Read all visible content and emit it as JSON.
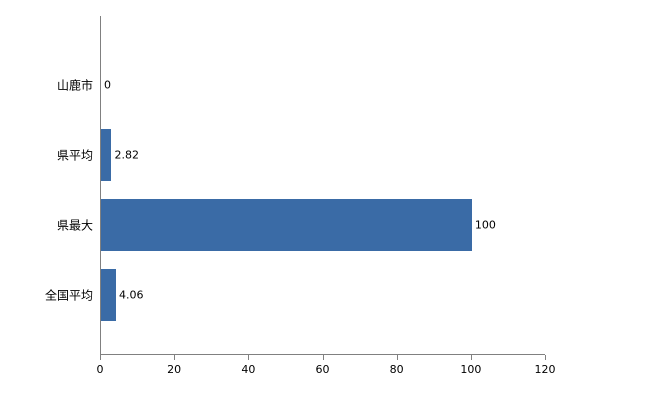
{
  "chart_data": {
    "type": "bar",
    "orientation": "horizontal",
    "title": "",
    "categories": [
      "山鹿市",
      "県平均",
      "県最大",
      "全国平均"
    ],
    "values": [
      0,
      2.82,
      100,
      4.06
    ],
    "value_labels": [
      "0",
      "2.82",
      "100",
      "4.06"
    ],
    "xlabel": "",
    "ylabel": "",
    "xlim": [
      0,
      120
    ],
    "x_ticks": [
      "0",
      "20",
      "40",
      "60",
      "80",
      "100",
      "120"
    ],
    "x_tick_values": [
      0,
      20,
      40,
      60,
      80,
      100,
      120
    ],
    "bar_color": "#3a6ba6",
    "axis_color": "#808080",
    "background_color": "#ffffff",
    "grid": false,
    "legend": "none"
  }
}
